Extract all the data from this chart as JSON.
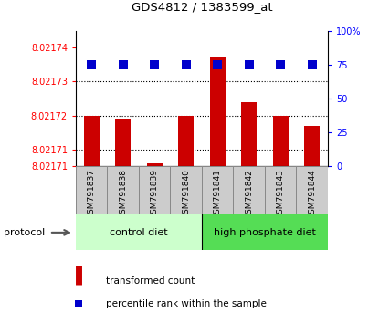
{
  "title": "GDS4812 / 1383599_at",
  "samples": [
    "GSM791837",
    "GSM791838",
    "GSM791839",
    "GSM791840",
    "GSM791841",
    "GSM791842",
    "GSM791843",
    "GSM791844"
  ],
  "transformed_counts": [
    8.02172,
    8.021719,
    8.021706,
    8.02172,
    8.021737,
    8.021724,
    8.02172,
    8.021717
  ],
  "percentile_ranks": [
    75,
    75,
    75,
    75,
    75,
    75,
    75,
    75
  ],
  "ylim_min": 8.021705,
  "ylim_max": 8.021745,
  "left_yticks": [
    8.02171,
    8.02171,
    8.02172,
    8.02173,
    8.02174
  ],
  "left_ytick_labels": [
    "8.02171",
    "8.02171",
    "8.02172",
    "8.02173",
    "8.02174"
  ],
  "left_ytick_positions": [
    8.021705,
    8.02171,
    8.02172,
    8.02173,
    8.02174
  ],
  "right_ytick_vals": [
    0,
    25,
    50,
    75,
    100
  ],
  "bar_color": "#cc0000",
  "dot_color": "#0000cc",
  "groups": [
    {
      "name": "control diet",
      "count": 4,
      "color_light": "#ccffcc",
      "color_dark": "#44bb44"
    },
    {
      "name": "high phosphate diet",
      "count": 4,
      "color_light": "#55dd55",
      "color_dark": "#22aa22"
    }
  ],
  "protocol_label": "protocol",
  "legend_bar_label": "transformed count",
  "legend_dot_label": "percentile rank within the sample",
  "bar_width": 0.5,
  "dot_size": 45,
  "grid_color": "#555555",
  "sample_box_color": "#cccccc",
  "sample_box_edge": "#888888"
}
